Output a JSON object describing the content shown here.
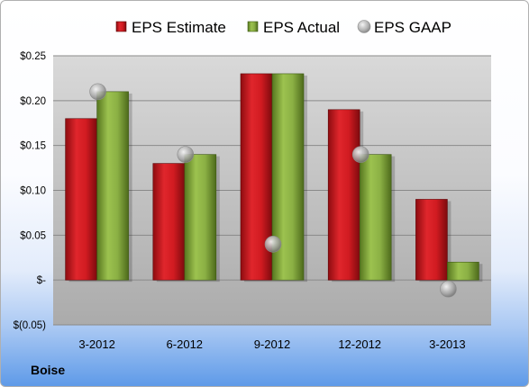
{
  "chart_data": {
    "type": "bar",
    "categories": [
      "3-2012",
      "6-2012",
      "9-2012",
      "12-2012",
      "3-2013"
    ],
    "series": [
      {
        "name": "EPS Estimate",
        "values": [
          0.18,
          0.13,
          0.23,
          0.19,
          0.09
        ],
        "color": "#c0141b"
      },
      {
        "name": "EPS Actual",
        "values": [
          0.21,
          0.14,
          0.23,
          0.14,
          0.02
        ],
        "color": "#7ea03a"
      },
      {
        "name": "EPS GAAP",
        "values": [
          0.21,
          0.14,
          0.04,
          0.14,
          -0.01
        ],
        "color": "#a6a6a6",
        "marker": "circle"
      }
    ],
    "ylim": [
      -0.05,
      0.25
    ],
    "yticks": [
      {
        "value": 0.25,
        "label": "$0.25"
      },
      {
        "value": 0.2,
        "label": "$0.20"
      },
      {
        "value": 0.15,
        "label": "$0.15"
      },
      {
        "value": 0.1,
        "label": "$0.10"
      },
      {
        "value": 0.05,
        "label": "$0.05"
      },
      {
        "value": 0.0,
        "label": "$-"
      },
      {
        "value": -0.05,
        "label": "$(0.05)"
      }
    ],
    "grid": true,
    "legend": "top"
  },
  "footer": {
    "label": "Boise"
  }
}
